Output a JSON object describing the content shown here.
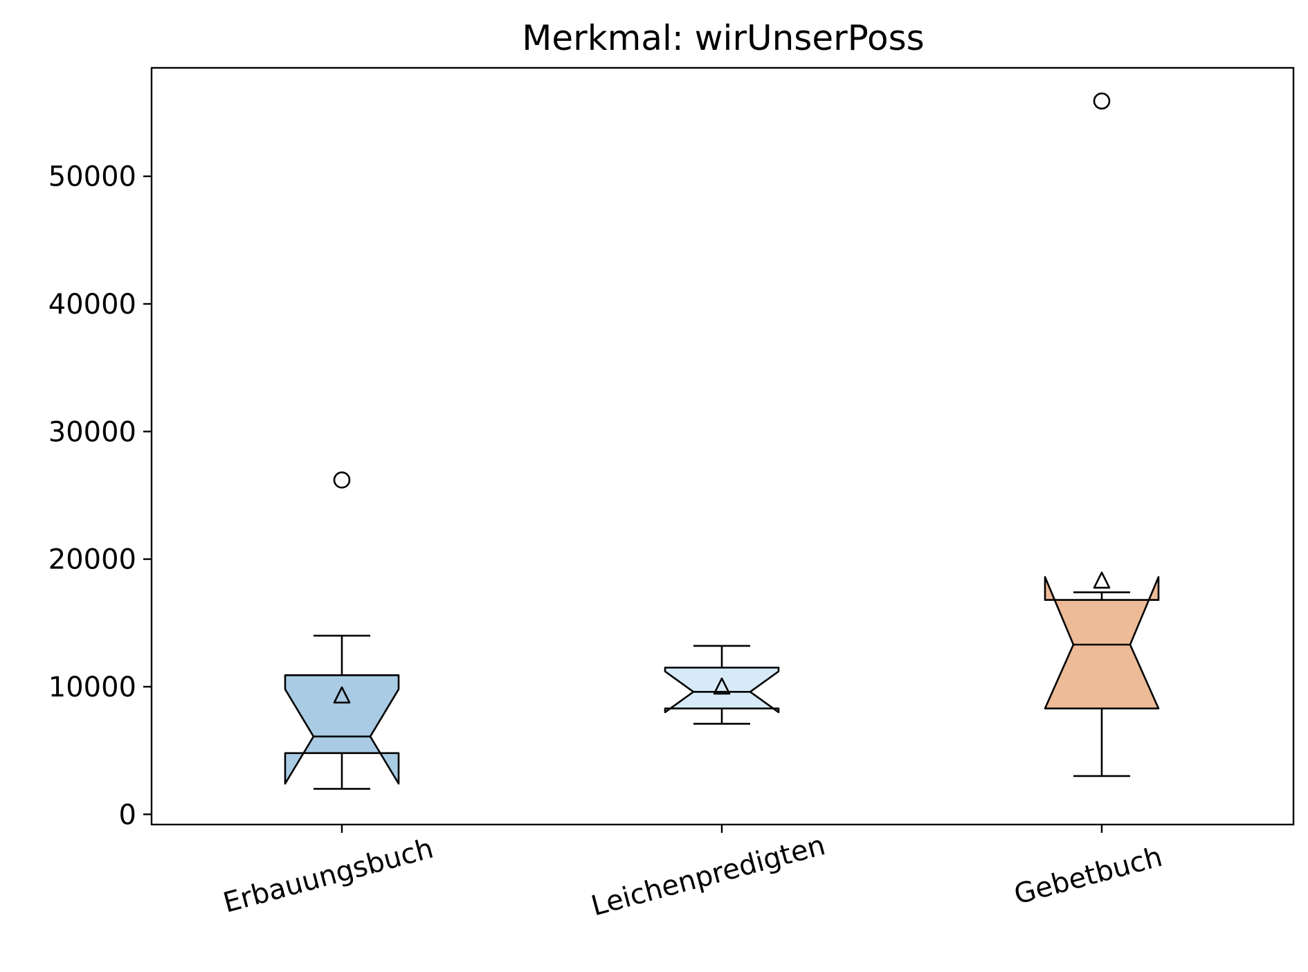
{
  "chart_data": {
    "type": "boxplot",
    "title": "Merkmal: wirUnserPoss",
    "xlabel": "",
    "ylabel": "",
    "ylim": [
      -800,
      58500
    ],
    "yticks": [
      0,
      10000,
      20000,
      30000,
      40000,
      50000
    ],
    "ytick_labels": [
      "0",
      "10000",
      "20000",
      "30000",
      "40000",
      "50000"
    ],
    "notched": true,
    "show_means": true,
    "grid": false,
    "categories": [
      "Erbauungsbuch",
      "Leichenpredigten",
      "Gebetbuch"
    ],
    "boxes": [
      {
        "name": "Erbauungsbuch",
        "color": "#a9cbe3",
        "whisker_low": 2000,
        "q1": 4800,
        "median": 6100,
        "q3": 10900,
        "whisker_high": 14000,
        "notch_low": 2400,
        "notch_high": 9800,
        "mean": 9300,
        "fliers": [
          26200
        ]
      },
      {
        "name": "Leichenpredigten",
        "color": "#d7eaf8",
        "whisker_low": 7100,
        "q1": 8300,
        "median": 9600,
        "q3": 11500,
        "whisker_high": 13200,
        "notch_low": 8000,
        "notch_high": 11200,
        "mean": 10000,
        "fliers": []
      },
      {
        "name": "Gebetbuch",
        "color": "#edbb98",
        "whisker_low": 3000,
        "q1": 8300,
        "median": 13300,
        "q3": 16800,
        "whisker_high": 17400,
        "notch_low": 8300,
        "notch_high": 18600,
        "mean": 18300,
        "fliers": [
          55900
        ]
      }
    ]
  }
}
